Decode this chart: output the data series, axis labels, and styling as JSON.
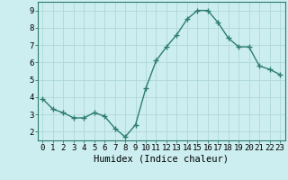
{
  "x": [
    0,
    1,
    2,
    3,
    4,
    5,
    6,
    7,
    8,
    9,
    10,
    11,
    12,
    13,
    14,
    15,
    16,
    17,
    18,
    19,
    20,
    21,
    22,
    23
  ],
  "y": [
    3.9,
    3.3,
    3.1,
    2.8,
    2.8,
    3.1,
    2.9,
    2.2,
    1.7,
    2.4,
    4.5,
    6.1,
    6.9,
    7.6,
    8.5,
    9.0,
    9.0,
    8.3,
    7.4,
    6.9,
    6.9,
    5.8,
    5.6,
    5.3
  ],
  "line_color": "#2e7d6e",
  "marker": "+",
  "marker_size": 4,
  "bg_color": "#cceef0",
  "grid_color": "#b0d8d8",
  "xlabel": "Humidex (Indice chaleur)",
  "xlim": [
    -0.5,
    23.5
  ],
  "ylim": [
    1.5,
    9.5
  ],
  "xtick_labels": [
    "0",
    "1",
    "2",
    "3",
    "4",
    "5",
    "6",
    "7",
    "8",
    "9",
    "10",
    "11",
    "12",
    "13",
    "14",
    "15",
    "16",
    "17",
    "18",
    "19",
    "20",
    "21",
    "22",
    "23"
  ],
  "ytick_values": [
    2,
    3,
    4,
    5,
    6,
    7,
    8,
    9
  ],
  "font_size_axis": 6.5,
  "font_size_xlabel": 7.5,
  "linewidth": 1.0,
  "spine_color": "#2e7d6e",
  "tick_color": "#2e7d6e"
}
